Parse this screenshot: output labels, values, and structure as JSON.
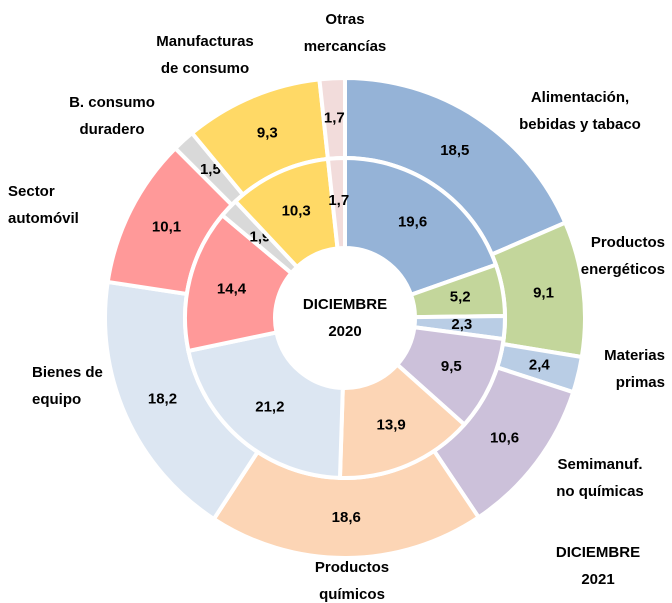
{
  "chart_data": {
    "type": "donut",
    "labels": [
      [
        "Alimentación,",
        "bebidas y tabaco"
      ],
      [
        "Productos",
        "energéticos"
      ],
      [
        "Materias",
        "primas"
      ],
      [
        "Semimanuf.",
        "no químicas"
      ],
      [
        "Productos",
        "químicos"
      ],
      [
        "Bienes de",
        "equipo"
      ],
      [
        "Sector",
        "automóvil"
      ],
      [
        "B. consumo",
        "duradero"
      ],
      [
        "Manufacturas",
        "de consumo"
      ],
      [
        "Otras",
        "mercancías"
      ]
    ],
    "colors": [
      "#95b3d7",
      "#c3d69b",
      "#b9cde5",
      "#ccc1da",
      "#fcd5b5",
      "#dce6f2",
      "#ff9999",
      "#d9d9d9",
      "#ffd966",
      "#f2dcdb"
    ],
    "series": [
      {
        "name": [
          "DICIEMBRE",
          "2021"
        ],
        "values": [
          18.5,
          9.1,
          2.4,
          10.6,
          18.6,
          18.2,
          10.1,
          1.5,
          9.3,
          1.7
        ],
        "value_labels": [
          "18,5",
          "9,1",
          "2,4",
          "10,6",
          "18,6",
          "18,2",
          "10,1",
          "1,5",
          "9,3",
          "1,7"
        ]
      },
      {
        "name": [
          "DICIEMBRE",
          "2020"
        ],
        "values": [
          19.6,
          5.2,
          2.3,
          9.5,
          13.9,
          21.2,
          14.4,
          1.9,
          10.3,
          1.7
        ],
        "value_labels": [
          "19,6",
          "5,2",
          "2,3",
          "9,5",
          "13,9",
          "21,2",
          "14,4",
          "1,9",
          "10,3",
          "1,7"
        ]
      }
    ]
  }
}
